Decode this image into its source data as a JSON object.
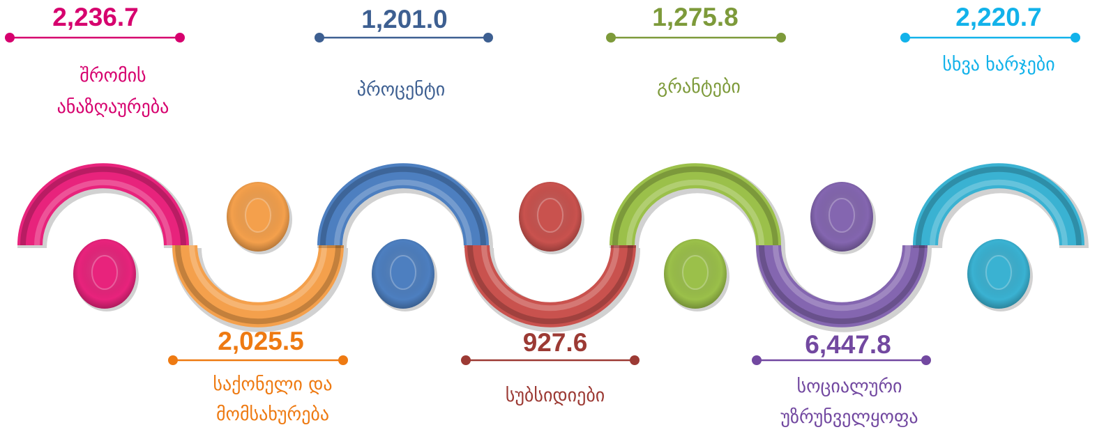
{
  "items": [
    {
      "value": "2,236.7",
      "label": [
        "შრომის",
        "ანაზღაურება"
      ],
      "color": "#d6006e",
      "dark": "#8a0a4a"
    },
    {
      "value": "2,025.5",
      "label": [
        "საქონელი და",
        "მომსახურება"
      ],
      "color": "#ee7a12",
      "dark": "#b85a10"
    },
    {
      "value": "1,201.0",
      "label": [
        "პროცენტი"
      ],
      "color": "#3d5f91",
      "dark": "#2a4370"
    },
    {
      "value": "927.6",
      "label": [
        "სუბსიდიები"
      ],
      "color": "#9c3a34",
      "dark": "#6e2420"
    },
    {
      "value": "1,275.8",
      "label": [
        "გრანტები"
      ],
      "color": "#7d9a3a",
      "dark": "#567020"
    },
    {
      "value": "6,447.8",
      "label": [
        "სოციალური",
        "უზრუნველყოფა"
      ],
      "color": "#7248a0",
      "dark": "#4c2c74"
    },
    {
      "value": "2,220.7",
      "label": [
        "სხვა ხარჯები"
      ],
      "color": "#12b2ea",
      "dark": "#1a7fa0"
    }
  ],
  "segment_colors": {
    "pink": "#e8237c",
    "orange": "#f4a04c",
    "blue": "#4d7fc0",
    "red": "#c9524e",
    "green": "#9bc04a",
    "purple": "#8466b0",
    "cyan": "#3ab2d2"
  }
}
